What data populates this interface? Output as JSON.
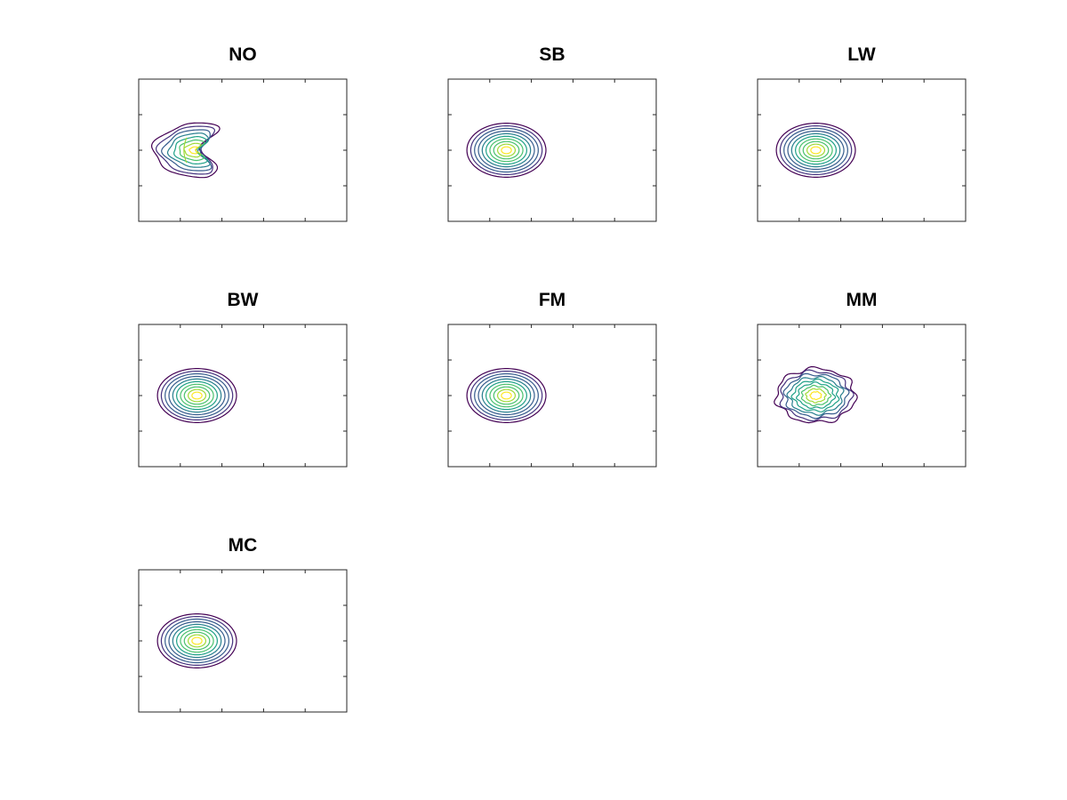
{
  "figure": {
    "background": "#ffffff",
    "axis_color": "#262626"
  },
  "colormap": [
    "#440154",
    "#46337f",
    "#365c8d",
    "#277f8e",
    "#1fa187",
    "#4ac16d",
    "#a0da39",
    "#fde725"
  ],
  "chart_data": [
    {
      "type": "contour",
      "title": "NO",
      "shape": "crescent",
      "x_ticks": 5,
      "y_ticks": 4,
      "levels": 8,
      "center": [
        0.29,
        0.5
      ],
      "spread": [
        0.19,
        0.19
      ]
    },
    {
      "type": "contour",
      "title": "SB",
      "shape": "ellipse",
      "x_ticks": 5,
      "y_ticks": 4,
      "levels": 10,
      "center": [
        0.28,
        0.5
      ],
      "spread": [
        0.19,
        0.19
      ]
    },
    {
      "type": "contour",
      "title": "LW",
      "shape": "ellipse",
      "x_ticks": 5,
      "y_ticks": 4,
      "levels": 10,
      "center": [
        0.28,
        0.5
      ],
      "spread": [
        0.19,
        0.19
      ]
    },
    {
      "type": "contour",
      "title": "BW",
      "shape": "ellipse",
      "x_ticks": 5,
      "y_ticks": 4,
      "levels": 10,
      "center": [
        0.28,
        0.5
      ],
      "spread": [
        0.19,
        0.19
      ]
    },
    {
      "type": "contour",
      "title": "FM",
      "shape": "ellipse",
      "x_ticks": 5,
      "y_ticks": 4,
      "levels": 10,
      "center": [
        0.28,
        0.5
      ],
      "spread": [
        0.19,
        0.19
      ]
    },
    {
      "type": "contour",
      "title": "MM",
      "shape": "ellipse-irregular",
      "x_ticks": 5,
      "y_ticks": 4,
      "levels": 9,
      "center": [
        0.28,
        0.5
      ],
      "spread": [
        0.19,
        0.19
      ]
    },
    {
      "type": "contour",
      "title": "MC",
      "shape": "ellipse",
      "x_ticks": 5,
      "y_ticks": 4,
      "levels": 10,
      "center": [
        0.28,
        0.5
      ],
      "spread": [
        0.19,
        0.19
      ]
    }
  ]
}
